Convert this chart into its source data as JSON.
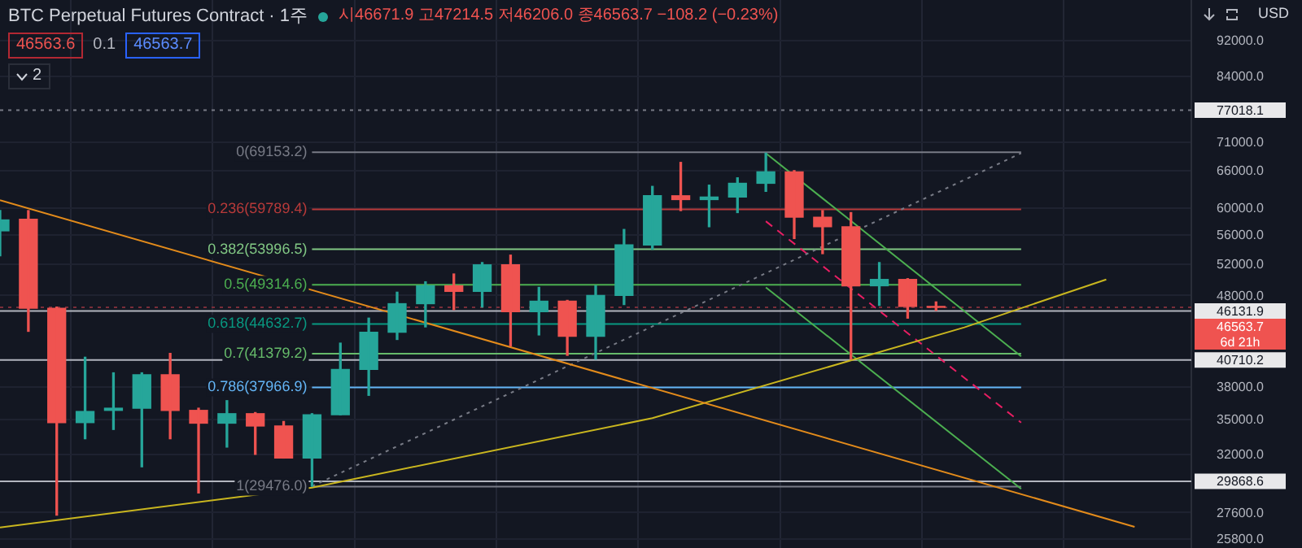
{
  "chart_data": {
    "type": "candlestick",
    "title": "BTC Perpetual Futures Contract · 1주",
    "ylabel": "USD",
    "categories": [
      null,
      null,
      null,
      null,
      null,
      null,
      null,
      null,
      null,
      null,
      null,
      null,
      null,
      null,
      null,
      null,
      null,
      null,
      null,
      null,
      null,
      null,
      null,
      null,
      null,
      null,
      null,
      null,
      null,
      null,
      null,
      null,
      null,
      null,
      null,
      null,
      null,
      null,
      null,
      null,
      null,
      null,
      null
    ],
    "ohlc": [
      [
        56600,
        59600,
        53100,
        58200
      ],
      [
        58300,
        59600,
        43800,
        46450
      ],
      [
        46450,
        46600,
        27400,
        34700
      ],
      [
        34700,
        41000,
        33300,
        35700
      ],
      [
        35800,
        39400,
        34100,
        36000
      ],
      [
        36000,
        39400,
        31000,
        39200
      ],
      [
        39200,
        41400,
        33300,
        35800
      ],
      [
        35800,
        36000,
        29000,
        34650
      ],
      [
        34650,
        36700,
        32600,
        35500
      ],
      [
        35500,
        35600,
        32000,
        34400
      ],
      [
        34400,
        34800,
        31700,
        31700
      ],
      [
        31700,
        35500,
        29500,
        35400
      ],
      [
        35400,
        42500,
        35400,
        39750
      ],
      [
        39750,
        45300,
        37200,
        43700
      ],
      [
        43700,
        48400,
        42900,
        47000
      ],
      [
        47000,
        49700,
        44300,
        49200
      ],
      [
        49200,
        50700,
        46300,
        48500
      ],
      [
        48500,
        52200,
        46600,
        51900
      ],
      [
        51900,
        53200,
        42200,
        46050
      ],
      [
        46050,
        49000,
        43400,
        47300
      ],
      [
        47300,
        47400,
        41200,
        43250
      ],
      [
        43250,
        49200,
        40800,
        48000
      ],
      [
        48000,
        56800,
        46900,
        54600
      ],
      [
        54600,
        63400,
        54000,
        61900
      ],
      [
        61900,
        67400,
        59600,
        61300
      ],
      [
        61300,
        63600,
        57200,
        61700
      ],
      [
        61700,
        64800,
        59300,
        63900
      ],
      [
        63900,
        69000,
        62600,
        65800
      ],
      [
        65800,
        66000,
        55500,
        58600
      ],
      [
        58600,
        59600,
        53400,
        57200
      ],
      [
        57200,
        59300,
        40800,
        49200
      ],
      [
        49200,
        52200,
        46800,
        50000
      ],
      [
        50000,
        50100,
        45300,
        46670
      ],
      [
        46671.9,
        47214.5,
        46206.0,
        46563.7
      ],
      null,
      null,
      null,
      null,
      null,
      null,
      null,
      null,
      null
    ],
    "colors": [
      "#26a69a",
      "#ef5350",
      "#ef5350",
      "#26a69a",
      "#26a69a",
      "#26a69a",
      "#ef5350",
      "#ef5350",
      "#26a69a",
      "#ef5350",
      "#ef5350",
      "#26a69a",
      "#26a69a",
      "#26a69a",
      "#26a69a",
      "#26a69a",
      "#ef5350",
      "#26a69a",
      "#ef5350",
      "#26a69a",
      "#ef5350",
      "#26a69a",
      "#26a69a",
      "#26a69a",
      "#ef5350",
      "#26a69a",
      "#26a69a",
      "#26a69a",
      "#ef5350",
      "#ef5350",
      "#ef5350",
      "#26a69a",
      "#ef5350",
      "#ef5350",
      null,
      null,
      null,
      null,
      null,
      null,
      null,
      null,
      null
    ],
    "series": [
      {
        "type": "line",
        "color": "#e38b1b",
        "line_style": "solid",
        "values": [
          61200,
          null,
          null,
          null,
          null,
          null,
          null,
          null,
          null,
          null,
          null,
          null,
          null,
          null,
          null,
          null,
          null,
          null,
          null,
          null,
          null,
          null,
          null,
          null,
          null,
          null,
          null,
          null,
          null,
          null,
          null,
          null,
          null,
          null,
          null,
          null,
          null,
          null,
          null,
          null,
          26600,
          null,
          null
        ]
      },
      {
        "type": "line",
        "color": "#c9b61f",
        "line_style": "solid",
        "values": [
          26550,
          null,
          null,
          null,
          null,
          null,
          null,
          null,
          null,
          null,
          null,
          29400,
          null,
          null,
          null,
          null,
          null,
          null,
          null,
          null,
          null,
          null,
          null,
          35100,
          null,
          null,
          null,
          null,
          null,
          null,
          null,
          null,
          null,
          null,
          44250,
          null,
          null,
          null,
          null,
          50000,
          null,
          null,
          null
        ]
      },
      {
        "type": "line",
        "color": "#787b86",
        "line_style": "dotted",
        "values": [
          null,
          null,
          null,
          null,
          null,
          null,
          null,
          null,
          null,
          null,
          null,
          29500,
          null,
          null,
          null,
          null,
          null,
          null,
          null,
          null,
          null,
          null,
          null,
          null,
          null,
          null,
          null,
          null,
          null,
          null,
          null,
          null,
          null,
          null,
          null,
          null,
          69000,
          null,
          null,
          null,
          null,
          null,
          null
        ]
      },
      {
        "type": "line",
        "color": "#4caf50",
        "line_style": "solid",
        "values": [
          null,
          null,
          null,
          null,
          null,
          null,
          null,
          null,
          null,
          null,
          null,
          null,
          null,
          null,
          null,
          null,
          null,
          null,
          null,
          null,
          null,
          null,
          null,
          null,
          null,
          null,
          null,
          69000,
          null,
          null,
          null,
          null,
          null,
          null,
          null,
          null,
          41100,
          null,
          null,
          null,
          null,
          null,
          null
        ]
      },
      {
        "type": "line",
        "color": "#4caf50",
        "line_style": "solid",
        "values": [
          null,
          null,
          null,
          null,
          null,
          null,
          null,
          null,
          null,
          null,
          null,
          null,
          null,
          null,
          null,
          null,
          null,
          null,
          null,
          null,
          null,
          null,
          null,
          null,
          null,
          null,
          null,
          49000,
          null,
          null,
          null,
          null,
          null,
          null,
          null,
          null,
          29300,
          null,
          null,
          null,
          null,
          null,
          null
        ]
      },
      {
        "type": "line",
        "color": "#e91e63",
        "line_style": "dashed",
        "values": [
          null,
          null,
          null,
          null,
          null,
          null,
          null,
          null,
          null,
          null,
          null,
          null,
          null,
          null,
          null,
          null,
          null,
          null,
          null,
          null,
          null,
          null,
          null,
          null,
          null,
          null,
          null,
          58000,
          null,
          null,
          null,
          null,
          null,
          null,
          null,
          null,
          34700,
          null,
          null,
          null,
          null,
          null,
          null
        ]
      }
    ],
    "ylim": [
      25200,
      102000
    ],
    "log": "y",
    "yticks": [
      {
        "value": 25800,
        "label": "25800.0"
      },
      {
        "value": 27600,
        "label": "27600.0"
      },
      {
        "value": 32000,
        "label": "32000.0"
      },
      {
        "value": 35000,
        "label": "35000.0"
      },
      {
        "value": 38000,
        "label": "38000.0"
      },
      {
        "value": 48000,
        "label": "48000.0"
      },
      {
        "value": 52000,
        "label": "52000.0"
      },
      {
        "value": 56000,
        "label": "56000.0"
      },
      {
        "value": 60000,
        "label": "60000.0"
      },
      {
        "value": 66000,
        "label": "66000.0"
      },
      {
        "value": 71000,
        "label": "71000.0"
      },
      {
        "value": 84000,
        "label": "84000.0"
      },
      {
        "value": 92000,
        "label": "92000.0"
      }
    ],
    "tick_labels": "y",
    "grid": true,
    "legend": false,
    "ref_lines": [
      {
        "axis": "y",
        "value": 69153.2,
        "label": "0(69153.2)",
        "color": "#787b86"
      },
      {
        "axis": "y",
        "value": 59789.4,
        "label": "0.236(59789.4)",
        "color": "#b83a3a"
      },
      {
        "axis": "y",
        "value": 53996.5,
        "label": "0.382(53996.5)",
        "color": "#81c784"
      },
      {
        "axis": "y",
        "value": 49314.6,
        "label": "0.5(49314.6)",
        "color": "#4caf50"
      },
      {
        "axis": "y",
        "value": 44632.7,
        "label": "0.618(44632.7)",
        "color": "#089981"
      },
      {
        "axis": "y",
        "value": 41379.2,
        "label": "0.7(41379.2)",
        "color": "#66bb6a"
      },
      {
        "axis": "y",
        "value": 37966.9,
        "label": "0.786(37966.9)",
        "color": "#64b5f6"
      },
      {
        "axis": "y",
        "value": 29476.0,
        "label": "1(29476.0)",
        "color": "#787b86"
      },
      {
        "axis": "y",
        "value": 77018.1,
        "label": "77018.1",
        "color": "#787b86",
        "line_style": "dotted"
      },
      {
        "axis": "y",
        "value": 46563.7,
        "label": null,
        "color": "#7a2e3a",
        "line_style": "dotted"
      },
      {
        "axis": "y",
        "value": 46131.9,
        "label": "46131.9",
        "color": "#b2b5be",
        "line_style": "solid"
      },
      {
        "axis": "y",
        "value": 40710.2,
        "label": "40710.2",
        "color": "#b2b5be",
        "line_style": "solid"
      },
      {
        "axis": "y",
        "value": 29868.6,
        "label": "29868.6",
        "color": "#b2b5be",
        "line_style": "solid"
      }
    ],
    "annotations": [
      "시46671.9 고47214.5 저46206.0 종46563.7 −108.2 (−0.23%)",
      "46563.6",
      "0.1",
      "46563.7",
      "2",
      "46563.7",
      "6d 21h"
    ]
  }
}
